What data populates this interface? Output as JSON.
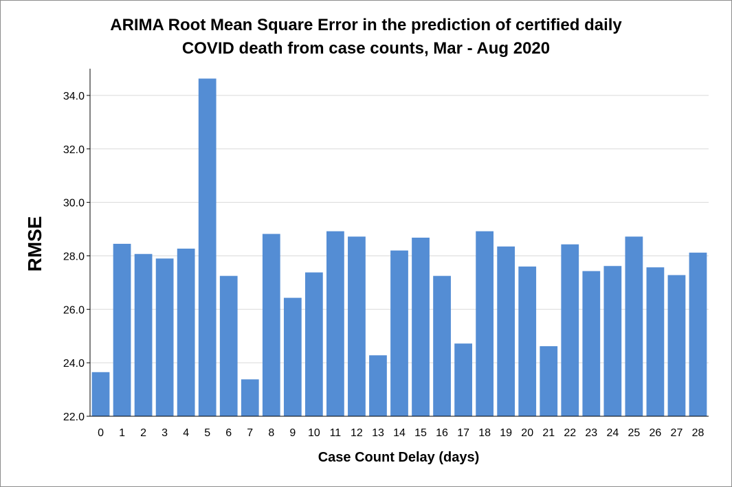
{
  "chart_data": {
    "type": "bar",
    "title_lines": [
      "ARIMA Root Mean Square Error in the prediction of certified daily",
      "COVID death from case counts, Mar - Aug 2020"
    ],
    "xlabel": "Case Count Delay (days)",
    "ylabel": "RMSE",
    "ylim": [
      22.0,
      35.0
    ],
    "yticks": [
      "22.0",
      "24.0",
      "26.0",
      "28.0",
      "30.0",
      "32.0",
      "34.0"
    ],
    "grid": "horizontal",
    "bar_color": "#548dd4",
    "categories": [
      "0",
      "1",
      "2",
      "3",
      "4",
      "5",
      "6",
      "7",
      "8",
      "9",
      "10",
      "11",
      "12",
      "13",
      "14",
      "15",
      "16",
      "17",
      "18",
      "19",
      "20",
      "21",
      "22",
      "23",
      "24",
      "25",
      "26",
      "27",
      "28"
    ],
    "values": [
      23.65,
      28.45,
      28.07,
      27.9,
      28.27,
      34.63,
      27.25,
      23.38,
      28.82,
      26.43,
      27.38,
      28.92,
      28.72,
      24.28,
      28.2,
      28.68,
      27.25,
      24.72,
      28.92,
      28.35,
      27.6,
      24.62,
      28.43,
      27.43,
      27.62,
      28.72,
      27.57,
      27.28,
      28.12
    ]
  }
}
